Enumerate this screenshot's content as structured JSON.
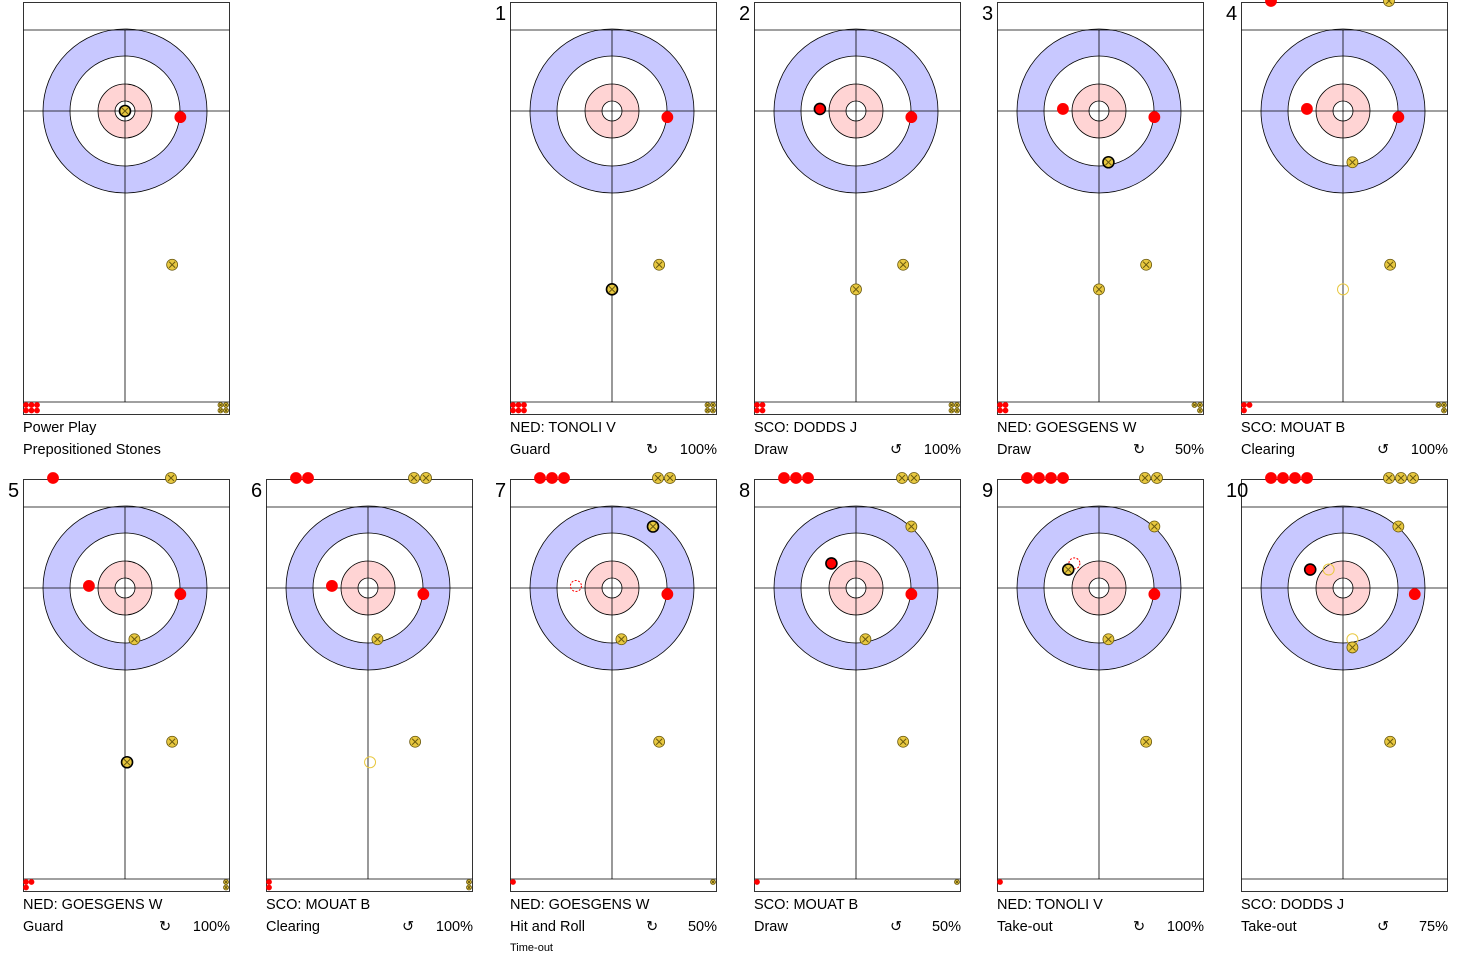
{
  "colors": {
    "red_team": "#ff0000",
    "yellow_team": "#e8c840",
    "outer_ring": "#c8c8ff",
    "inner_ring": "#ffd4d4",
    "line": "#000000"
  },
  "panels": [
    {
      "number": "",
      "team_player": "Power Play",
      "shot_type": "Prepositioned Stones",
      "rotation_icon": "",
      "percentage": "",
      "note": "",
      "house": [
        {
          "team": "yellow",
          "x": 0.0,
          "y": 0.0,
          "active": true
        },
        {
          "team": "red",
          "x": 1.35,
          "y": 0.15,
          "active": false
        },
        {
          "team": "yellow",
          "x": 1.15,
          "y": 3.75,
          "active": false
        }
      ],
      "remaining": {
        "red": 6,
        "yellow": 4
      },
      "thrown": {
        "red": 0,
        "yellow": 0
      }
    },
    {
      "number": "1",
      "team_player": "NED: TONOLI V",
      "shot_type": "Guard",
      "rotation_icon": "↻",
      "percentage": "100%",
      "note": "",
      "house": [
        {
          "team": "red",
          "x": 1.35,
          "y": 0.15,
          "active": false
        },
        {
          "team": "yellow",
          "x": 1.15,
          "y": 3.75,
          "active": false
        },
        {
          "team": "yellow",
          "x": 0.0,
          "y": 4.35,
          "active": true
        }
      ],
      "remaining": {
        "red": 6,
        "yellow": 4
      },
      "thrown": {
        "red": 0,
        "yellow": 0
      }
    },
    {
      "number": "2",
      "team_player": "SCO: DODDS J",
      "shot_type": "Draw",
      "rotation_icon": "↺",
      "percentage": "100%",
      "note": "",
      "house": [
        {
          "team": "red",
          "x": -0.88,
          "y": -0.05,
          "active": true
        },
        {
          "team": "red",
          "x": 1.35,
          "y": 0.15,
          "active": false
        },
        {
          "team": "yellow",
          "x": 1.15,
          "y": 3.75,
          "active": false
        },
        {
          "team": "yellow",
          "x": 0.0,
          "y": 4.35,
          "active": false
        }
      ],
      "remaining": {
        "red": 4,
        "yellow": 4
      },
      "thrown": {
        "red": 0,
        "yellow": 0
      }
    },
    {
      "number": "3",
      "team_player": "NED: GOESGENS W",
      "shot_type": "Draw",
      "rotation_icon": "↻",
      "percentage": "50%",
      "note": "",
      "house": [
        {
          "team": "red",
          "x": -0.88,
          "y": -0.05,
          "active": false
        },
        {
          "team": "red",
          "x": 1.35,
          "y": 0.15,
          "active": false
        },
        {
          "team": "yellow",
          "x": 0.23,
          "y": 1.25,
          "active": true
        },
        {
          "team": "yellow",
          "x": 1.15,
          "y": 3.75,
          "active": false
        },
        {
          "team": "yellow",
          "x": 0.0,
          "y": 4.35,
          "active": false
        }
      ],
      "remaining": {
        "red": 4,
        "yellow": 3
      },
      "thrown": {
        "red": 0,
        "yellow": 0
      }
    },
    {
      "number": "4",
      "team_player": "SCO: MOUAT B",
      "shot_type": "Clearing",
      "rotation_icon": "↺",
      "percentage": "100%",
      "note": "",
      "house": [
        {
          "team": "red",
          "x": -0.88,
          "y": -0.05,
          "active": false
        },
        {
          "team": "red",
          "x": 1.35,
          "y": 0.15,
          "active": false
        },
        {
          "team": "yellow",
          "x": 0.23,
          "y": 1.25,
          "active": false
        },
        {
          "team": "yellow",
          "x": 1.15,
          "y": 3.75,
          "active": false
        },
        {
          "team": "yellow_ghost",
          "x": 0.0,
          "y": 4.35,
          "active": false
        }
      ],
      "remaining": {
        "red": 3,
        "yellow": 3
      },
      "thrown": {
        "red": 1,
        "yellow": 1
      }
    },
    {
      "number": "5",
      "team_player": "NED: GOESGENS W",
      "shot_type": "Guard",
      "rotation_icon": "↻",
      "percentage": "100%",
      "note": "",
      "house": [
        {
          "team": "red",
          "x": -0.88,
          "y": -0.05,
          "active": false
        },
        {
          "team": "red",
          "x": 1.35,
          "y": 0.15,
          "active": false
        },
        {
          "team": "yellow",
          "x": 0.23,
          "y": 1.25,
          "active": false
        },
        {
          "team": "yellow",
          "x": 1.15,
          "y": 3.75,
          "active": false
        },
        {
          "team": "yellow",
          "x": 0.05,
          "y": 4.25,
          "active": true
        }
      ],
      "remaining": {
        "red": 3,
        "yellow": 2
      },
      "thrown": {
        "red": 1,
        "yellow": 1
      }
    },
    {
      "number": "6",
      "team_player": "SCO: MOUAT B",
      "shot_type": "Clearing",
      "rotation_icon": "↺",
      "percentage": "100%",
      "note": "",
      "house": [
        {
          "team": "red",
          "x": -0.88,
          "y": -0.05,
          "active": false
        },
        {
          "team": "red",
          "x": 1.35,
          "y": 0.15,
          "active": false
        },
        {
          "team": "yellow",
          "x": 0.23,
          "y": 1.25,
          "active": false
        },
        {
          "team": "yellow",
          "x": 1.15,
          "y": 3.75,
          "active": false
        },
        {
          "team": "yellow_ghost",
          "x": 0.05,
          "y": 4.25,
          "active": false
        }
      ],
      "remaining": {
        "red": 2,
        "yellow": 2
      },
      "thrown": {
        "red": 2,
        "yellow": 2
      }
    },
    {
      "number": "7",
      "team_player": "NED: GOESGENS W",
      "shot_type": "Hit and Roll",
      "rotation_icon": "↻",
      "percentage": "50%",
      "note": "Time-out",
      "house": [
        {
          "team": "yellow",
          "x": 1.0,
          "y": -1.5,
          "active": true
        },
        {
          "team": "red_ghost",
          "x": -0.88,
          "y": -0.05,
          "active": false
        },
        {
          "team": "red",
          "x": 1.35,
          "y": 0.15,
          "active": false
        },
        {
          "team": "yellow",
          "x": 0.23,
          "y": 1.25,
          "active": false
        },
        {
          "team": "yellow",
          "x": 1.15,
          "y": 3.75,
          "active": false
        }
      ],
      "remaining": {
        "red": 1,
        "yellow": 1
      },
      "thrown": {
        "red": 3,
        "yellow": 2
      }
    },
    {
      "number": "8",
      "team_player": "SCO: MOUAT B",
      "shot_type": "Draw",
      "rotation_icon": "↺",
      "percentage": "50%",
      "note": "",
      "house": [
        {
          "team": "yellow",
          "x": 1.35,
          "y": -1.5,
          "active": false
        },
        {
          "team": "red",
          "x": -0.6,
          "y": -0.6,
          "active": true
        },
        {
          "team": "red",
          "x": 1.35,
          "y": 0.15,
          "active": false
        },
        {
          "team": "yellow",
          "x": 0.23,
          "y": 1.25,
          "active": false
        },
        {
          "team": "yellow",
          "x": 1.15,
          "y": 3.75,
          "active": false
        }
      ],
      "remaining": {
        "red": 1,
        "yellow": 1
      },
      "thrown": {
        "red": 3,
        "yellow": 2
      }
    },
    {
      "number": "9",
      "team_player": "NED: TONOLI V",
      "shot_type": "Take-out",
      "rotation_icon": "↻",
      "percentage": "100%",
      "note": "",
      "house": [
        {
          "team": "yellow",
          "x": 1.35,
          "y": -1.5,
          "active": false
        },
        {
          "team": "red_ghost",
          "x": -0.6,
          "y": -0.6,
          "active": false
        },
        {
          "team": "yellow",
          "x": -0.75,
          "y": -0.45,
          "active": true
        },
        {
          "team": "red",
          "x": 1.35,
          "y": 0.15,
          "active": false
        },
        {
          "team": "yellow",
          "x": 0.23,
          "y": 1.25,
          "active": false
        },
        {
          "team": "yellow",
          "x": 1.15,
          "y": 3.75,
          "active": false
        }
      ],
      "remaining": {
        "red": 1,
        "yellow": 0
      },
      "thrown": {
        "red": 4,
        "yellow": 2
      }
    },
    {
      "number": "10",
      "team_player": "SCO: DODDS J",
      "shot_type": "Take-out",
      "rotation_icon": "↺",
      "percentage": "75%",
      "note": "",
      "house": [
        {
          "team": "yellow",
          "x": 1.35,
          "y": -1.5,
          "active": false
        },
        {
          "team": "yellow_ghost",
          "x": -0.35,
          "y": -0.45,
          "active": false
        },
        {
          "team": "red",
          "x": -0.8,
          "y": -0.45,
          "active": true
        },
        {
          "team": "red",
          "x": 1.75,
          "y": 0.15,
          "active": false
        },
        {
          "team": "yellow_ghost",
          "x": 0.23,
          "y": 1.25,
          "active": false
        },
        {
          "team": "yellow",
          "x": 0.23,
          "y": 1.45,
          "active": false
        },
        {
          "team": "yellow",
          "x": 1.15,
          "y": 3.75,
          "active": false
        }
      ],
      "remaining": {
        "red": 0,
        "yellow": 0
      },
      "thrown": {
        "red": 4,
        "yellow": 3
      }
    }
  ]
}
